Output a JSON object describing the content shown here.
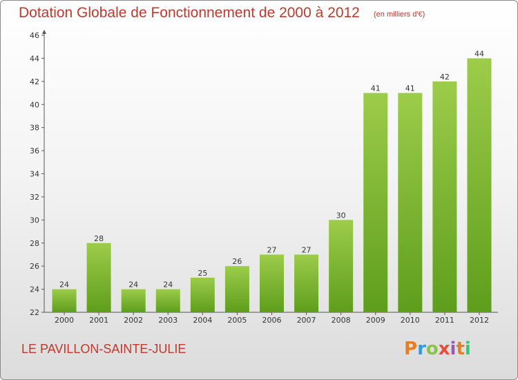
{
  "header": {
    "title": "Dotation Globale de Fonctionnement de 2000 à 2012",
    "subtitle": "(en milliers d'€)"
  },
  "footer": {
    "commune": "LE PAVILLON-SAINTE-JULIE",
    "logo_text": "Proxiti",
    "logo_colors": [
      "#e67e22",
      "#3498db",
      "#8bc34a",
      "#e74c3c",
      "#9b59b6",
      "#e67e22",
      "#2ecc71"
    ]
  },
  "chart_data": {
    "type": "bar",
    "title": "Dotation Globale de Fonctionnement de 2000 à 2012",
    "subtitle": "(en milliers d'€)",
    "categories": [
      "2000",
      "2001",
      "2002",
      "2003",
      "2004",
      "2005",
      "2006",
      "2007",
      "2008",
      "2009",
      "2010",
      "2011",
      "2012"
    ],
    "values": [
      24,
      28,
      24,
      24,
      25,
      26,
      27,
      27,
      30,
      41,
      41,
      42,
      44
    ],
    "ylim": [
      22,
      46
    ],
    "yticks": [
      22,
      24,
      26,
      28,
      30,
      32,
      34,
      36,
      38,
      40,
      42,
      44,
      46
    ],
    "grid": false,
    "bar_color_top": "#9ccc4a",
    "bar_color_bottom": "#5e9e1c"
  }
}
